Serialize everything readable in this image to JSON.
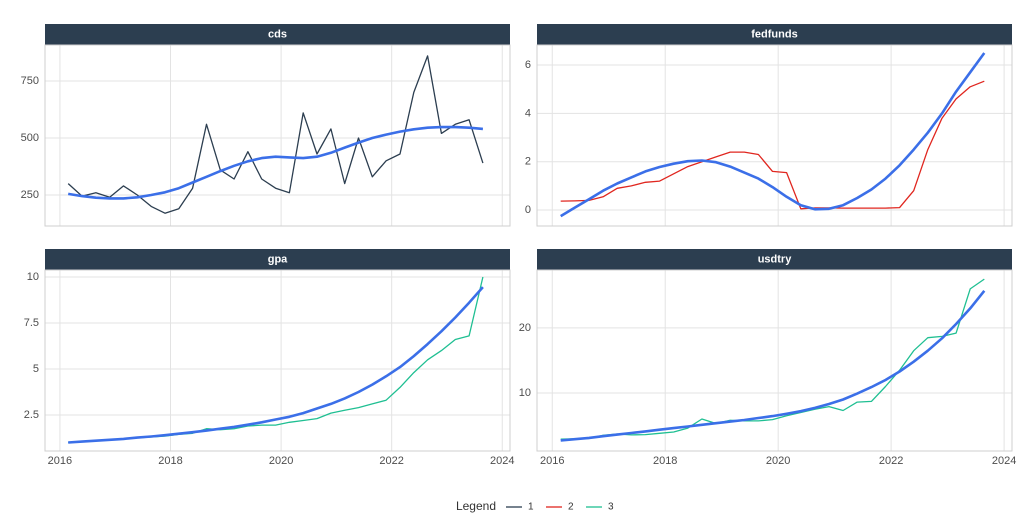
{
  "chart_data": [
    {
      "type": "line",
      "title": "cds",
      "x": [
        2016.15,
        2016.4,
        2016.65,
        2016.9,
        2017.15,
        2017.4,
        2017.65,
        2017.9,
        2018.15,
        2018.4,
        2018.65,
        2018.9,
        2019.15,
        2019.4,
        2019.65,
        2019.9,
        2020.15,
        2020.4,
        2020.65,
        2020.9,
        2021.15,
        2021.4,
        2021.65,
        2021.9,
        2022.15,
        2022.4,
        2022.65,
        2022.9,
        2023.15,
        2023.4,
        2023.65
      ],
      "series": [
        {
          "name": "1",
          "color": "#2c3e50",
          "values": [
            300,
            245,
            260,
            240,
            290,
            250,
            200,
            170,
            190,
            280,
            560,
            360,
            320,
            440,
            320,
            280,
            260,
            610,
            430,
            540,
            300,
            500,
            330,
            400,
            430,
            700,
            860,
            520,
            560,
            580,
            390
          ]
        },
        {
          "color": "#3b6fe8",
          "values": [
            255,
            245,
            238,
            235,
            235,
            240,
            250,
            262,
            280,
            305,
            330,
            355,
            378,
            398,
            412,
            418,
            415,
            412,
            418,
            435,
            458,
            480,
            500,
            515,
            528,
            538,
            545,
            548,
            548,
            545,
            540
          ]
        }
      ],
      "xlim": [
        2015.73,
        2024.14
      ],
      "xticks": [
        2016,
        2018,
        2020,
        2022,
        2024
      ],
      "ylim": [
        114,
        908
      ],
      "yticks": [
        250,
        500,
        750
      ]
    },
    {
      "type": "line",
      "title": "fedfunds",
      "x": [
        2016.15,
        2016.4,
        2016.65,
        2016.9,
        2017.15,
        2017.4,
        2017.65,
        2017.9,
        2018.15,
        2018.4,
        2018.65,
        2018.9,
        2019.15,
        2019.4,
        2019.65,
        2019.9,
        2020.15,
        2020.4,
        2020.65,
        2020.9,
        2021.15,
        2021.4,
        2021.65,
        2021.9,
        2022.15,
        2022.4,
        2022.65,
        2022.9,
        2023.15,
        2023.4,
        2023.65
      ],
      "series": [
        {
          "name": "2",
          "color": "#e0261f",
          "values": [
            0.37,
            0.38,
            0.4,
            0.55,
            0.9,
            1.0,
            1.15,
            1.2,
            1.5,
            1.8,
            2.0,
            2.2,
            2.4,
            2.4,
            2.3,
            1.6,
            1.55,
            0.05,
            0.09,
            0.09,
            0.08,
            0.08,
            0.08,
            0.08,
            0.1,
            0.8,
            2.5,
            3.8,
            4.6,
            5.1,
            5.33
          ]
        },
        {
          "color": "#3b6fe8",
          "values": [
            -0.25,
            0.1,
            0.45,
            0.8,
            1.1,
            1.35,
            1.6,
            1.78,
            1.92,
            2.02,
            2.05,
            1.98,
            1.8,
            1.55,
            1.3,
            0.95,
            0.55,
            0.2,
            0.03,
            0.05,
            0.2,
            0.5,
            0.85,
            1.3,
            1.85,
            2.5,
            3.2,
            4.0,
            4.9,
            5.7,
            6.5
          ]
        }
      ],
      "xlim": [
        2015.73,
        2024.14
      ],
      "xticks": [
        2016,
        2018,
        2020,
        2022,
        2024
      ],
      "ylim": [
        -0.66,
        6.83
      ],
      "yticks": [
        0,
        2,
        4,
        6
      ]
    },
    {
      "type": "line",
      "title": "gpa",
      "x": [
        2016.15,
        2016.4,
        2016.65,
        2016.9,
        2017.15,
        2017.4,
        2017.65,
        2017.9,
        2018.15,
        2018.4,
        2018.65,
        2018.9,
        2019.15,
        2019.4,
        2019.65,
        2019.9,
        2020.15,
        2020.4,
        2020.65,
        2020.9,
        2021.15,
        2021.4,
        2021.65,
        2021.9,
        2022.15,
        2022.4,
        2022.65,
        2022.9,
        2023.15,
        2023.4,
        2023.65
      ],
      "series": [
        {
          "name": "3",
          "color": "#1fbf92",
          "values": [
            1.0,
            1.05,
            1.1,
            1.15,
            1.2,
            1.25,
            1.3,
            1.35,
            1.45,
            1.5,
            1.75,
            1.7,
            1.75,
            1.9,
            1.95,
            1.95,
            2.1,
            2.2,
            2.3,
            2.6,
            2.75,
            2.9,
            3.1,
            3.3,
            4.0,
            4.8,
            5.5,
            6.0,
            6.6,
            6.8,
            10.0
          ]
        },
        {
          "color": "#3b6fe8",
          "values": [
            1.0,
            1.05,
            1.1,
            1.15,
            1.2,
            1.27,
            1.33,
            1.4,
            1.48,
            1.56,
            1.65,
            1.75,
            1.85,
            1.97,
            2.1,
            2.25,
            2.4,
            2.6,
            2.85,
            3.1,
            3.4,
            3.75,
            4.15,
            4.6,
            5.1,
            5.7,
            6.35,
            7.05,
            7.8,
            8.6,
            9.45
          ]
        }
      ],
      "xlim": [
        2015.73,
        2024.14
      ],
      "xticks": [
        2016,
        2018,
        2020,
        2022,
        2024
      ],
      "ylim": [
        0.54,
        10.38
      ],
      "yticks": [
        2.5,
        5.0,
        7.5,
        10.0
      ]
    },
    {
      "type": "line",
      "title": "usdtry",
      "x": [
        2016.15,
        2016.4,
        2016.65,
        2016.9,
        2017.15,
        2017.4,
        2017.65,
        2017.9,
        2018.15,
        2018.4,
        2018.65,
        2018.9,
        2019.15,
        2019.4,
        2019.65,
        2019.9,
        2020.15,
        2020.4,
        2020.65,
        2020.9,
        2021.15,
        2021.4,
        2021.65,
        2021.9,
        2022.15,
        2022.4,
        2022.65,
        2022.9,
        2023.15,
        2023.4,
        2023.65
      ],
      "series": [
        {
          "name": "3",
          "color": "#1fbf92",
          "values": [
            2.9,
            2.95,
            3.0,
            3.5,
            3.7,
            3.55,
            3.6,
            3.8,
            4.0,
            4.6,
            6.0,
            5.3,
            5.8,
            5.7,
            5.7,
            5.9,
            6.5,
            7.0,
            7.5,
            7.9,
            7.3,
            8.6,
            8.7,
            11,
            13.5,
            16.5,
            18.5,
            18.7,
            19.2,
            26,
            27.5
          ]
        },
        {
          "color": "#3b6fe8",
          "values": [
            2.7,
            2.9,
            3.1,
            3.35,
            3.6,
            3.85,
            4.1,
            4.35,
            4.6,
            4.85,
            5.1,
            5.35,
            5.6,
            5.85,
            6.15,
            6.45,
            6.8,
            7.2,
            7.7,
            8.3,
            9.0,
            9.9,
            10.9,
            12.0,
            13.3,
            14.8,
            16.5,
            18.4,
            20.6,
            23.0,
            25.7
          ]
        }
      ],
      "xlim": [
        2015.73,
        2024.14
      ],
      "xticks": [
        2016,
        2018,
        2020,
        2022,
        2024
      ],
      "ylim": [
        1.08,
        28.9
      ],
      "yticks": [
        10,
        20
      ]
    }
  ],
  "legend_title": "Legend"
}
